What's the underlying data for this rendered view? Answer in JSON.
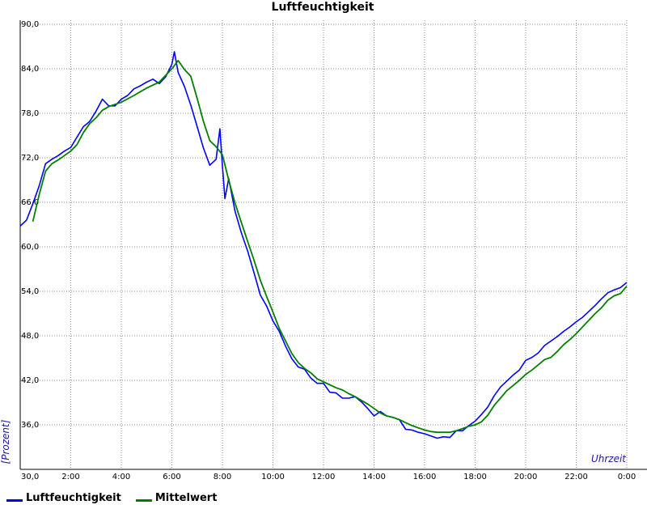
{
  "chart_data": {
    "type": "line",
    "title": "Luftfeuchtigkeit",
    "xlabel": "Uhrzeit",
    "ylabel": "[Prozent]",
    "xlim": [
      0,
      24
    ],
    "ylim": [
      30,
      90
    ],
    "grid": true,
    "legend_position": "bottom-left",
    "x_ticks": [
      {
        "x": 2,
        "label": "2:00"
      },
      {
        "x": 4,
        "label": "4:00"
      },
      {
        "x": 6,
        "label": "6:00"
      },
      {
        "x": 8,
        "label": "8:00"
      },
      {
        "x": 10,
        "label": "10:00"
      },
      {
        "x": 12,
        "label": "12:00"
      },
      {
        "x": 14,
        "label": "14:00"
      },
      {
        "x": 16,
        "label": "16:00"
      },
      {
        "x": 18,
        "label": "18:00"
      },
      {
        "x": 20,
        "label": "20:00"
      },
      {
        "x": 22,
        "label": "22:00"
      },
      {
        "x": 24,
        "label": "0:00"
      }
    ],
    "y_ticks": [
      {
        "y": 30,
        "label": "30,0"
      },
      {
        "y": 36,
        "label": "36,0"
      },
      {
        "y": 42,
        "label": "42,0"
      },
      {
        "y": 48,
        "label": "48,0"
      },
      {
        "y": 54,
        "label": "54,0"
      },
      {
        "y": 60,
        "label": "60,0"
      },
      {
        "y": 66,
        "label": "66,0"
      },
      {
        "y": 72,
        "label": "72,0"
      },
      {
        "y": 78,
        "label": "78,0"
      },
      {
        "y": 84,
        "label": "84,0"
      },
      {
        "y": 90,
        "label": "90,0"
      }
    ],
    "series": [
      {
        "name": "Luftfeuchtigkeit",
        "color": "#0000ff",
        "x": [
          0.0,
          0.25,
          0.5,
          0.75,
          1.0,
          1.25,
          1.5,
          1.75,
          2.0,
          2.25,
          2.5,
          2.75,
          3.0,
          3.25,
          3.5,
          3.75,
          4.0,
          4.25,
          4.5,
          4.75,
          5.0,
          5.25,
          5.5,
          5.75,
          6.0,
          6.1,
          6.25,
          6.5,
          6.75,
          7.0,
          7.25,
          7.5,
          7.75,
          7.9,
          8.0,
          8.1,
          8.25,
          8.5,
          8.75,
          9.0,
          9.25,
          9.5,
          9.75,
          10.0,
          10.25,
          10.5,
          10.75,
          11.0,
          11.25,
          11.5,
          11.75,
          12.0,
          12.25,
          12.5,
          12.75,
          13.0,
          13.25,
          13.5,
          13.75,
          14.0,
          14.25,
          14.5,
          14.75,
          15.0,
          15.25,
          15.5,
          15.75,
          16.0,
          16.25,
          16.5,
          16.75,
          17.0,
          17.25,
          17.5,
          17.75,
          18.0,
          18.25,
          18.5,
          18.75,
          19.0,
          19.25,
          19.5,
          19.75,
          20.0,
          20.25,
          20.5,
          20.75,
          21.0,
          21.25,
          21.5,
          21.75,
          22.0,
          22.25,
          22.5,
          22.75,
          23.0,
          23.25,
          23.5,
          23.75,
          24.0
        ],
        "values": [
          62.8,
          63.6,
          65.8,
          68.2,
          71.2,
          71.8,
          72.3,
          72.9,
          73.4,
          74.8,
          76.2,
          76.9,
          78.3,
          79.9,
          79.0,
          79.0,
          79.9,
          80.4,
          81.3,
          81.7,
          82.2,
          82.6,
          82.0,
          82.9,
          84.6,
          86.3,
          83.5,
          81.6,
          79.1,
          76.2,
          73.3,
          71.0,
          71.8,
          75.9,
          70.9,
          66.5,
          69.2,
          64.8,
          61.9,
          59.4,
          56.5,
          53.5,
          52.0,
          50.0,
          48.6,
          46.6,
          44.9,
          43.8,
          43.5,
          42.3,
          41.6,
          41.6,
          40.4,
          40.3,
          39.6,
          39.6,
          39.8,
          39.1,
          38.2,
          37.2,
          37.8,
          37.2,
          37.0,
          36.7,
          35.4,
          35.3,
          35.0,
          34.8,
          34.5,
          34.2,
          34.4,
          34.3,
          35.2,
          35.2,
          35.9,
          36.5,
          37.4,
          38.4,
          39.9,
          41.1,
          41.9,
          42.7,
          43.4,
          44.7,
          45.1,
          45.7,
          46.7,
          47.3,
          47.9,
          48.6,
          49.2,
          49.9,
          50.5,
          51.3,
          52.1,
          53.0,
          53.8,
          54.2,
          54.5,
          55.2
        ]
      },
      {
        "name": "Mittelwert",
        "color": "#008000",
        "x": [
          0.5,
          0.75,
          1.0,
          1.25,
          1.5,
          2.0,
          2.25,
          2.5,
          2.75,
          3.0,
          3.25,
          3.5,
          4.0,
          4.5,
          5.0,
          5.5,
          6.0,
          6.25,
          6.5,
          6.75,
          7.0,
          7.25,
          7.5,
          7.75,
          8.0,
          8.25,
          8.5,
          8.75,
          9.0,
          9.25,
          9.5,
          9.75,
          10.0,
          10.25,
          10.5,
          10.75,
          11.0,
          11.25,
          11.5,
          11.75,
          12.0,
          12.25,
          12.5,
          12.75,
          13.0,
          13.25,
          13.5,
          13.75,
          14.0,
          14.25,
          14.5,
          14.75,
          15.0,
          15.25,
          15.5,
          15.75,
          16.0,
          16.25,
          16.5,
          16.75,
          17.0,
          17.25,
          17.5,
          17.75,
          18.0,
          18.25,
          18.5,
          18.75,
          19.0,
          19.25,
          19.5,
          19.75,
          20.0,
          20.25,
          20.5,
          20.75,
          21.0,
          21.25,
          21.5,
          21.75,
          22.0,
          22.25,
          22.5,
          22.75,
          23.0,
          23.25,
          23.5,
          23.75,
          24.0
        ],
        "values": [
          63.4,
          67.0,
          70.2,
          71.2,
          71.7,
          72.9,
          73.8,
          75.4,
          76.6,
          77.4,
          78.4,
          78.9,
          79.5,
          80.4,
          81.4,
          82.2,
          84.0,
          85.1,
          83.9,
          83.0,
          80.0,
          76.9,
          74.3,
          73.5,
          72.4,
          69.0,
          65.9,
          63.3,
          60.7,
          58.2,
          55.5,
          53.3,
          51.2,
          49.0,
          47.3,
          45.6,
          44.4,
          43.6,
          43.0,
          42.2,
          41.8,
          41.4,
          41.0,
          40.7,
          40.2,
          39.8,
          39.3,
          38.8,
          38.2,
          37.6,
          37.2,
          37.0,
          36.7,
          36.3,
          35.9,
          35.6,
          35.3,
          35.1,
          35.0,
          35.0,
          35.0,
          35.2,
          35.5,
          35.8,
          36.0,
          36.4,
          37.3,
          38.6,
          39.6,
          40.6,
          41.3,
          42.0,
          42.8,
          43.4,
          44.1,
          44.8,
          45.1,
          45.9,
          46.8,
          47.5,
          48.3,
          49.2,
          50.1,
          51.0,
          51.8,
          52.8,
          53.4,
          53.7,
          54.7
        ]
      }
    ]
  }
}
